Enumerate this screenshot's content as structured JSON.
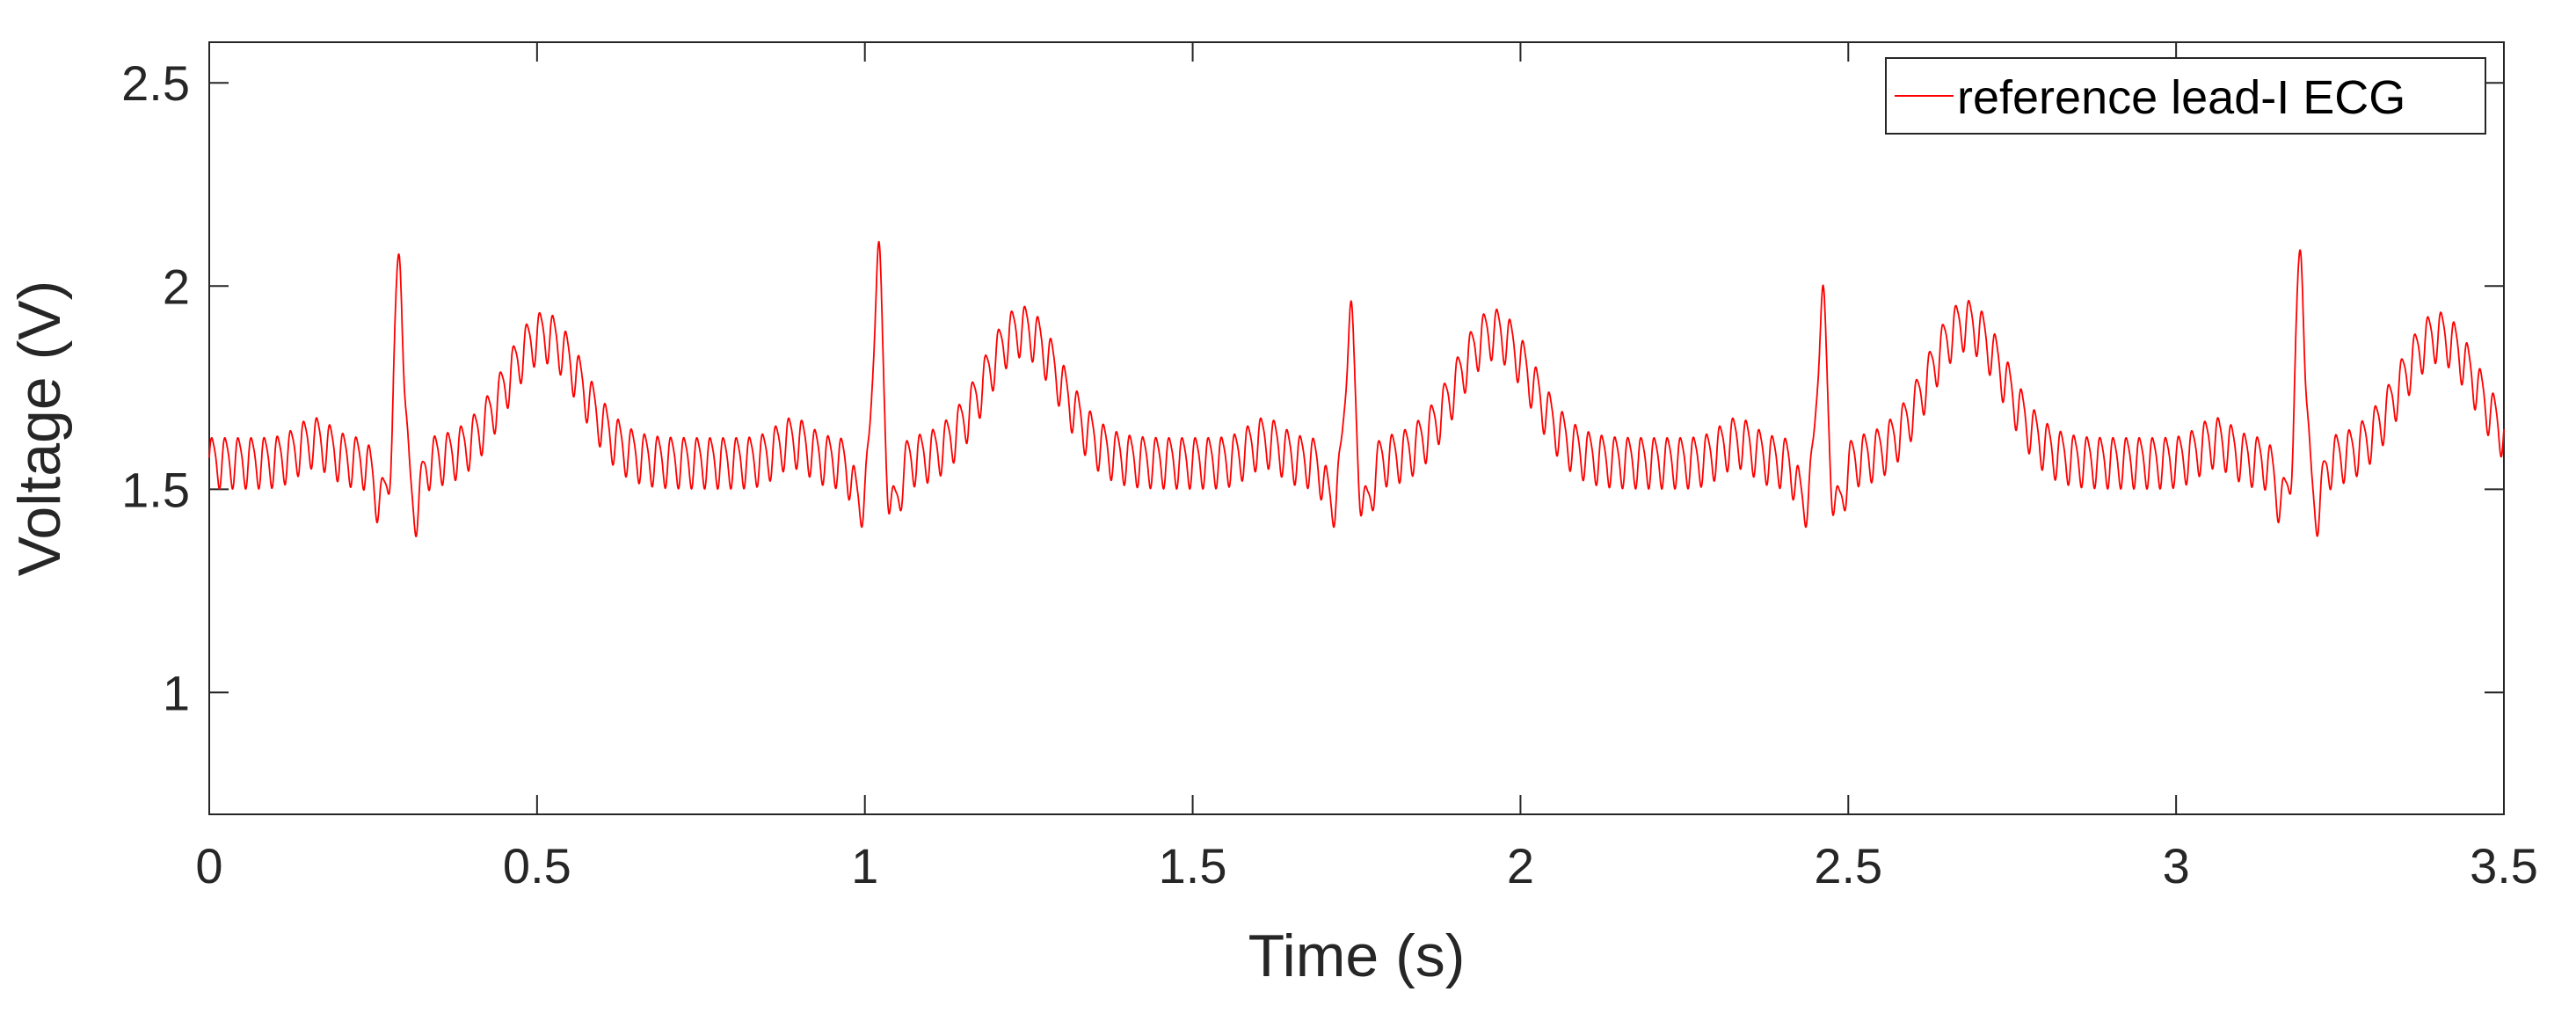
{
  "chart_data": {
    "type": "line",
    "title": "",
    "xlabel": "Time (s)",
    "ylabel": "Voltage (V)",
    "xlim": [
      0,
      3.5
    ],
    "ylim": [
      0.7,
      2.6
    ],
    "x_ticks": [
      0,
      0.5,
      1,
      1.5,
      2,
      2.5,
      3,
      3.5
    ],
    "x_tick_labels": [
      "0",
      "0.5",
      "1",
      "1.5",
      "2",
      "2.5",
      "3",
      "3.5"
    ],
    "y_ticks": [
      1,
      1.5,
      2,
      2.5
    ],
    "y_tick_labels": [
      "1",
      "1.5",
      "2",
      "2.5"
    ],
    "grid": false,
    "legend_position": "top-right",
    "line_color": "#ff0000",
    "axis_color": "#262626",
    "baseline_voltage": 1.57,
    "noise_amplitude_v": 0.06,
    "noise_frequency_hz": 50,
    "beats": [
      {
        "r_time": 0.29,
        "r_peak": 2.07,
        "t_time": 0.51,
        "t_peak": 2.0
      },
      {
        "r_time": 1.02,
        "r_peak": 2.09,
        "t_time": 1.24,
        "t_peak": 2.02
      },
      {
        "r_time": 1.74,
        "r_peak": 1.94,
        "t_time": 1.96,
        "t_peak": 2.01
      },
      {
        "r_time": 2.46,
        "r_peak": 1.98,
        "t_time": 2.68,
        "t_peak": 2.04
      },
      {
        "r_time": 3.19,
        "r_peak": 2.08,
        "t_time": 3.4,
        "t_peak": 2.0
      }
    ],
    "series": [
      {
        "name": "reference lead-I ECG",
        "color": "#ff0000"
      }
    ]
  }
}
